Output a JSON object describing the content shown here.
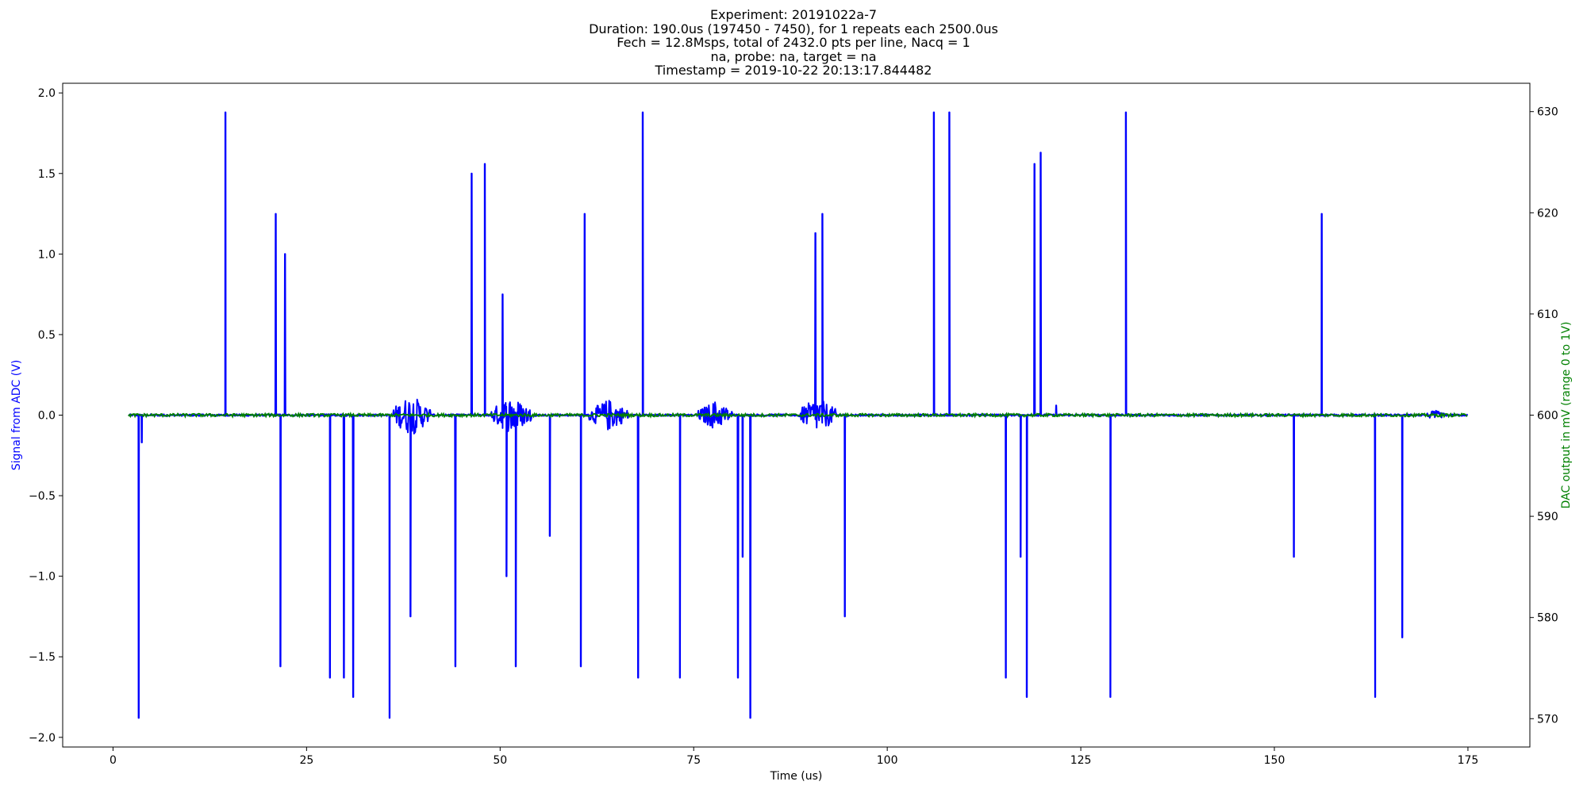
{
  "chart_data": {
    "type": "line",
    "title_lines": [
      "Experiment: 20191022a-7",
      "Duration: 190.0us (197450 - 7450), for 1 repeats each 2500.0us",
      "Fech = 12.8Msps, total of 2432.0 pts per line, Nacq = 1",
      "na, probe: na, target = na",
      "Timestamp = 2019-10-22 20:13:17.844482"
    ],
    "xlabel": "Time (us)",
    "ylabel": "Signal from ADC (V)",
    "y2label": "DAC output in mV (range 0 to 1V)",
    "xlim": [
      -6.5,
      183
    ],
    "ylim": [
      -2.06,
      2.06
    ],
    "y2lim": [
      567.2,
      632.8
    ],
    "xticks": [
      0,
      25,
      50,
      75,
      100,
      125,
      150,
      175
    ],
    "yticks": [
      -2.0,
      -1.5,
      -1.0,
      -0.5,
      0.0,
      0.5,
      1.0,
      1.5,
      2.0
    ],
    "ytick_labels": [
      "−2.0",
      "−1.5",
      "−1.0",
      "−0.5",
      "0.0",
      "0.5",
      "1.0",
      "1.5",
      "2.0"
    ],
    "y2ticks": [
      570,
      580,
      590,
      600,
      610,
      620,
      630
    ],
    "grid": false,
    "series": [
      {
        "axis": "left",
        "color": "#0000ff",
        "x_range": [
          2.0,
          175.0
        ],
        "spikes": [
          [
            3.3,
            -1.88
          ],
          [
            3.7,
            -0.17
          ],
          [
            14.5,
            1.88
          ],
          [
            21.0,
            1.25
          ],
          [
            21.6,
            -1.56
          ],
          [
            22.2,
            1.0
          ],
          [
            28.0,
            -1.63
          ],
          [
            29.8,
            -1.63
          ],
          [
            31.0,
            -1.75
          ],
          [
            35.7,
            -1.88
          ],
          [
            38.4,
            -1.25
          ],
          [
            44.2,
            -1.56
          ],
          [
            46.3,
            1.5
          ],
          [
            48.0,
            1.56
          ],
          [
            50.3,
            0.75
          ],
          [
            50.8,
            -1.0
          ],
          [
            52.0,
            -1.56
          ],
          [
            56.4,
            -0.75
          ],
          [
            60.4,
            -1.56
          ],
          [
            60.9,
            1.25
          ],
          [
            67.8,
            -1.63
          ],
          [
            68.4,
            1.88
          ],
          [
            73.2,
            -1.63
          ],
          [
            80.7,
            -1.63
          ],
          [
            81.3,
            -0.88
          ],
          [
            82.3,
            -1.88
          ],
          [
            90.7,
            1.13
          ],
          [
            91.6,
            1.25
          ],
          [
            94.5,
            -1.25
          ],
          [
            106.0,
            1.88
          ],
          [
            108.0,
            1.88
          ],
          [
            115.3,
            -1.63
          ],
          [
            117.2,
            -0.88
          ],
          [
            118.0,
            -1.75
          ],
          [
            119.0,
            1.56
          ],
          [
            119.8,
            1.63
          ],
          [
            121.8,
            0.06
          ],
          [
            128.8,
            -1.75
          ],
          [
            130.8,
            1.88
          ],
          [
            152.5,
            -0.88
          ],
          [
            156.1,
            1.25
          ],
          [
            163.0,
            -1.75
          ],
          [
            166.5,
            -1.38
          ]
        ],
        "bursts": [
          [
            36.0,
            41.0,
            0.13
          ],
          [
            48.8,
            54.0,
            0.12
          ],
          [
            61.5,
            66.5,
            0.1
          ],
          [
            75.5,
            80.0,
            0.09
          ],
          [
            88.5,
            93.5,
            0.11
          ],
          [
            169.5,
            172.0,
            0.03
          ]
        ]
      },
      {
        "axis": "right",
        "color": "#008000",
        "x_range": [
          2.0,
          175.0
        ],
        "level_mV": 600.0,
        "noise_mV": 0.15
      }
    ]
  }
}
